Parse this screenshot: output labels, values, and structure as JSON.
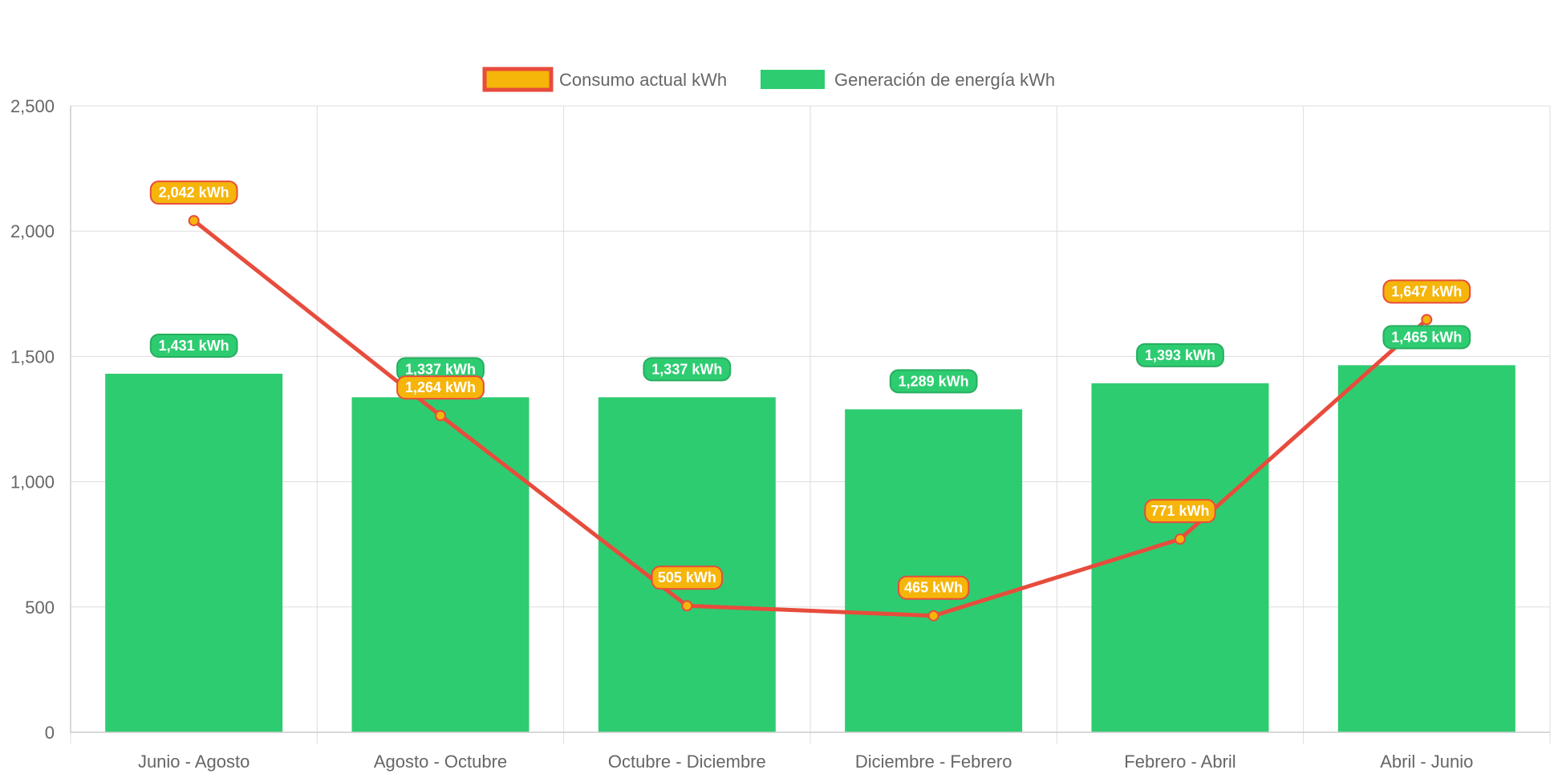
{
  "colors": {
    "bar": "#2ecc71",
    "bar_label_bg": "#2ecc71",
    "bar_label_border": "#27ae60",
    "line": "#e74c3c",
    "point_fill": "#f5b50a",
    "line_label_bg": "#f5b50a",
    "grid": "#dddddd",
    "axis_text": "#666666"
  },
  "chart_data": {
    "type": "bar",
    "title": "",
    "xlabel": "",
    "ylabel": "",
    "categories": [
      "Junio - Agosto",
      "Agosto - Octubre",
      "Octubre - Diciembre",
      "Diciembre - Febrero",
      "Febrero - Abril",
      "Abril - Junio"
    ],
    "ylim": [
      0,
      2500
    ],
    "yticks": [
      0,
      500,
      1000,
      1500,
      2000,
      2500
    ],
    "ytick_labels": [
      "0",
      "500",
      "1,000",
      "1,500",
      "2,000",
      "2,500"
    ],
    "grid": true,
    "legend_position": "top-center",
    "series": [
      {
        "name": "Consumo actual kWh",
        "type": "line",
        "values": [
          2042,
          1264,
          505,
          465,
          771,
          1647
        ],
        "labels": [
          "2,042 kWh",
          "1,264 kWh",
          "505 kWh",
          "465 kWh",
          "771 kWh",
          "1,647 kWh"
        ]
      },
      {
        "name": "Generación de energía kWh",
        "type": "bar",
        "values": [
          1431,
          1337,
          1337,
          1289,
          1393,
          1465
        ],
        "labels": [
          "1,431 kWh",
          "1,337 kWh",
          "1,337 kWh",
          "1,289 kWh",
          "1,393 kWh",
          "1,465 kWh"
        ]
      }
    ]
  }
}
